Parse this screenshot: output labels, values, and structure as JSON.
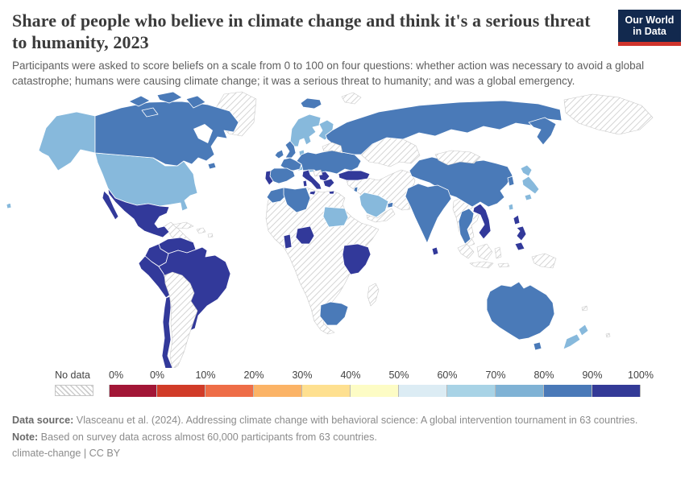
{
  "header": {
    "title": "Share of people who believe in climate change and think it's a serious threat to humanity, 2023",
    "subtitle": "Participants were asked to score beliefs on a scale from 0 to 100 on four questions: whether action was necessary to avoid a global catastrophe; humans were causing climate change; it was a serious threat to humanity; and was a global emergency.",
    "logo": {
      "line1": "Our World",
      "line2": "in Data",
      "bg_color": "#12294e",
      "accent_color": "#d0342c"
    }
  },
  "legend": {
    "no_data_label": "No data",
    "tick_labels": [
      "0%",
      "0%",
      "10%",
      "20%",
      "30%",
      "40%",
      "50%",
      "60%",
      "70%",
      "80%",
      "90%",
      "100%"
    ],
    "colors": [
      "#a21636",
      "#d13b28",
      "#ee6d47",
      "#fbb366",
      "#fee090",
      "#fdfcc5",
      "#dcecf4",
      "#a8d3e6",
      "#7fb2d5",
      "#4a79b8",
      "#333a97"
    ]
  },
  "map": {
    "bin_colors": {
      "p90_100": "#32399a",
      "p80_90": "#4a7ab8",
      "p70_80": "#87b9dc",
      "p60_70": "#a8d3e6"
    },
    "no_data_pattern": "diagonal-hatch-gray"
  },
  "chart_data": {
    "type": "heatmap",
    "subtype": "world-choropleth",
    "title": "Share of people who believe in climate change and think it's a serious threat to humanity, 2023",
    "unit": "%",
    "value_range": [
      0,
      100
    ],
    "legend_position": "bottom",
    "legend_bins": [
      "0",
      "0-10",
      "10-20",
      "20-30",
      "30-40",
      "40-50",
      "50-60",
      "60-70",
      "70-80",
      "80-90",
      "90-100"
    ],
    "palette": [
      "#a21636",
      "#d13b28",
      "#ee6d47",
      "#fbb366",
      "#fee090",
      "#fdfcc5",
      "#dcecf4",
      "#a8d3e6",
      "#7fb2d5",
      "#4a79b8",
      "#333a97"
    ],
    "no_data_style": "diagonal-hatch",
    "observed_bins": {
      "90-100": [
        "Mexico",
        "Venezuela",
        "Colombia",
        "Ecuador",
        "Peru",
        "Brazil",
        "Chile",
        "Portugal",
        "Italy",
        "Balkans (Serbia area)",
        "Greece",
        "Turkey",
        "Ghana",
        "Nigeria",
        "Uganda",
        "Kenya",
        "Tanzania",
        "Vietnam",
        "Philippines",
        "Sri Lanka"
      ],
      "80-90": [
        "Canada",
        "Iceland",
        "United Kingdom",
        "Ireland",
        "France",
        "Spain",
        "Germany",
        "Poland",
        "Romania",
        "Ukraine",
        "Russia",
        "China",
        "South Korea",
        "India",
        "Thailand",
        "Australia",
        "South Africa",
        "Algeria",
        "Morocco",
        "Israel",
        "United Arab Emirates"
      ],
      "70-80": [
        "United States",
        "Norway",
        "Sweden",
        "Finland",
        "Denmark",
        "Switzerland",
        "Austria",
        "Japan",
        "Taiwan",
        "New Zealand",
        "Saudi Arabia",
        "Sudan"
      ],
      "no_data": [
        "Greenland",
        "Central America",
        "Cuba",
        "Caribbean",
        "Guyana",
        "Suriname",
        "Bolivia",
        "Paraguay",
        "Argentina",
        "Uruguay",
        "Most of Africa (incl. Libya, Egypt, Ethiopia, Sahel, Central & Southern Africa)",
        "Madagascar",
        "Baltic states",
        "Belarus",
        "Hungary",
        "Kazakhstan",
        "Central Asia",
        "Iran",
        "Iraq",
        "Syria",
        "Yemen",
        "Oman",
        "Afghanistan",
        "Pakistan",
        "Mongolia",
        "Myanmar",
        "Laos",
        "Cambodia",
        "Malaysia",
        "Indonesia",
        "Papua New Guinea"
      ]
    }
  },
  "footer": {
    "source_label": "Data source:",
    "source_text": " Vlasceanu et al. (2024). Addressing climate change with behavioral science: A global intervention tournament in 63 countries.",
    "note_label": "Note:",
    "note_text": " Based on survey data across almost 60,000 participants from 63 countries.",
    "license": "climate-change | CC BY"
  }
}
